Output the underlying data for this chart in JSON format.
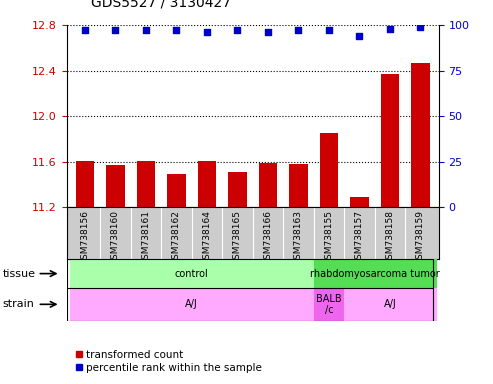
{
  "title": "GDS5527 / 3130427",
  "samples": [
    "GSM738156",
    "GSM738160",
    "GSM738161",
    "GSM738162",
    "GSM738164",
    "GSM738165",
    "GSM738166",
    "GSM738163",
    "GSM738155",
    "GSM738157",
    "GSM738158",
    "GSM738159"
  ],
  "bar_values": [
    11.61,
    11.57,
    11.61,
    11.49,
    11.61,
    11.51,
    11.59,
    11.58,
    11.85,
    11.29,
    12.37,
    12.47
  ],
  "dot_values": [
    97,
    97,
    97,
    97,
    96,
    97,
    96,
    97,
    97,
    94,
    98,
    99
  ],
  "ylim_left": [
    11.2,
    12.8
  ],
  "ylim_right": [
    0,
    100
  ],
  "yticks_left": [
    11.2,
    11.6,
    12.0,
    12.4,
    12.8
  ],
  "yticks_right": [
    0,
    25,
    50,
    75,
    100
  ],
  "bar_color": "#cc0000",
  "dot_color": "#0000cc",
  "tissue_labels": [
    {
      "text": "control",
      "start": 0,
      "end": 7,
      "color": "#aaffaa"
    },
    {
      "text": "rhabdomyosarcoma tumor",
      "start": 8,
      "end": 11,
      "color": "#55dd55"
    }
  ],
  "strain_labels": [
    {
      "text": "A/J",
      "start": 0,
      "end": 7,
      "color": "#ffaaff"
    },
    {
      "text": "BALB\n/c",
      "start": 8,
      "end": 8,
      "color": "#ee66ee"
    },
    {
      "text": "A/J",
      "start": 9,
      "end": 11,
      "color": "#ffaaff"
    }
  ],
  "legend_bar": "transformed count",
  "legend_dot": "percentile rank within the sample",
  "tick_label_color_left": "#cc0000",
  "tick_label_color_right": "#0000cc",
  "sample_bg_color": "#cccccc",
  "plot_bg": "#ffffff",
  "border_color": "#000000"
}
